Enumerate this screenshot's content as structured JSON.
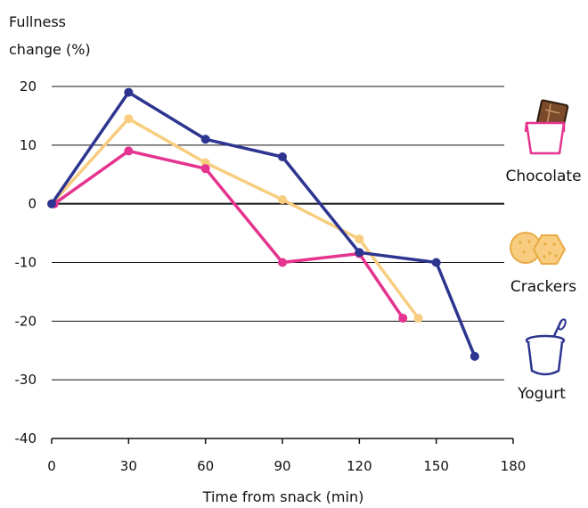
{
  "chart_data": {
    "type": "line",
    "ylabel": [
      "Fullness",
      "change (%)"
    ],
    "xlabel": "Time from snack (min)",
    "xlim": [
      0,
      180
    ],
    "ylim": [
      -40,
      20
    ],
    "xticks": [
      0,
      30,
      60,
      90,
      120,
      150,
      180
    ],
    "yticks": [
      20,
      10,
      0,
      -10,
      -20,
      -30,
      -40
    ],
    "grid": "horizontal",
    "legend_placement": "right",
    "series": [
      {
        "name": "Chocolate",
        "color": "#e5338f",
        "icon": "chocolate-bar-icon",
        "x": [
          1,
          30,
          60,
          90,
          120,
          137
        ],
        "y": [
          0,
          9,
          6,
          -10,
          -8.5,
          -19.5
        ]
      },
      {
        "name": "Crackers",
        "color": "#f8cd7f",
        "icon": "crackers-icon",
        "x": [
          0,
          30,
          60,
          90,
          120,
          143
        ],
        "y": [
          0,
          14.5,
          7,
          0.7,
          -6,
          -19.5
        ]
      },
      {
        "name": "Yogurt",
        "color": "#2d3590",
        "icon": "yogurt-cup-icon",
        "x": [
          0,
          30,
          60,
          90,
          120,
          150,
          165
        ],
        "y": [
          0,
          19,
          11,
          8,
          -8.3,
          -10,
          -26
        ]
      }
    ]
  }
}
